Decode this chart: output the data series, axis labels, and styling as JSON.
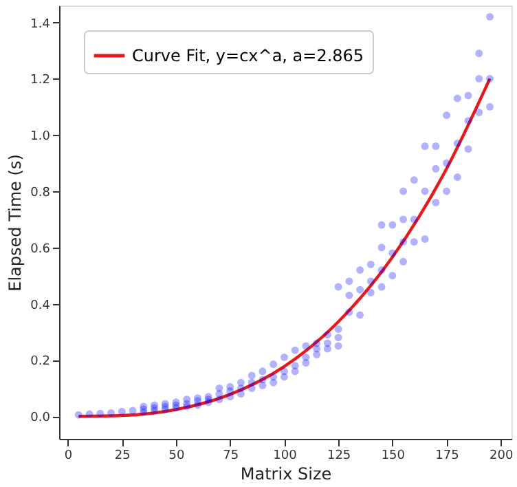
{
  "chart_data": {
    "type": "scatter",
    "xlabel": "Matrix Size",
    "ylabel": "Elapsed Time (s)",
    "xlim": [
      -4,
      205
    ],
    "ylim": [
      -0.08,
      1.46
    ],
    "xticks": [
      0,
      25,
      50,
      75,
      100,
      125,
      150,
      175,
      200
    ],
    "yticks": [
      {
        "value": 0,
        "label": "0.0"
      },
      {
        "value": 0.2,
        "label": "0.2"
      },
      {
        "value": 0.4,
        "label": "0.4"
      },
      {
        "value": 0.6,
        "label": "0.6"
      },
      {
        "value": 0.8,
        "label": "0.8"
      },
      {
        "value": 1.0,
        "label": "1.0"
      },
      {
        "value": 1.2,
        "label": "1.2"
      },
      {
        "value": 1.4,
        "label": "1.4"
      }
    ],
    "grid": false,
    "legend": "top left",
    "series": [
      {
        "marker": "circle",
        "color": "#0000ff",
        "x": [
          5,
          10,
          15,
          20,
          25,
          30,
          35,
          35,
          35,
          40,
          40,
          40,
          45,
          45,
          45,
          50,
          50,
          50,
          55,
          55,
          55,
          60,
          60,
          60,
          65,
          65,
          65,
          70,
          70,
          70,
          75,
          75,
          75,
          80,
          80,
          80,
          85,
          85,
          85,
          90,
          90,
          90,
          95,
          95,
          95,
          100,
          100,
          100,
          105,
          105,
          105,
          110,
          110,
          110,
          115,
          115,
          115,
          120,
          120,
          120,
          125,
          125,
          125,
          125,
          130,
          130,
          130,
          135,
          135,
          135,
          140,
          140,
          140,
          145,
          145,
          145,
          145,
          150,
          150,
          150,
          155,
          155,
          155,
          155,
          160,
          160,
          160,
          165,
          165,
          165,
          170,
          170,
          170,
          175,
          175,
          175,
          180,
          180,
          180,
          185,
          185,
          185,
          190,
          190,
          190,
          195,
          195,
          195
        ],
        "values": [
          0.005,
          0.008,
          0.01,
          0.012,
          0.017,
          0.02,
          0.015,
          0.025,
          0.035,
          0.02,
          0.03,
          0.04,
          0.025,
          0.035,
          0.045,
          0.03,
          0.04,
          0.05,
          0.035,
          0.045,
          0.06,
          0.04,
          0.055,
          0.065,
          0.05,
          0.06,
          0.07,
          0.06,
          0.08,
          0.1,
          0.07,
          0.09,
          0.105,
          0.08,
          0.1,
          0.12,
          0.1,
          0.12,
          0.145,
          0.11,
          0.13,
          0.16,
          0.12,
          0.14,
          0.185,
          0.14,
          0.16,
          0.21,
          0.16,
          0.18,
          0.235,
          0.19,
          0.21,
          0.25,
          0.22,
          0.24,
          0.26,
          0.24,
          0.26,
          0.29,
          0.25,
          0.28,
          0.31,
          0.46,
          0.37,
          0.43,
          0.48,
          0.36,
          0.45,
          0.52,
          0.44,
          0.48,
          0.54,
          0.46,
          0.52,
          0.6,
          0.68,
          0.5,
          0.58,
          0.68,
          0.55,
          0.62,
          0.7,
          0.8,
          0.62,
          0.7,
          0.84,
          0.63,
          0.8,
          0.96,
          0.76,
          0.88,
          0.96,
          0.8,
          0.9,
          1.07,
          0.85,
          0.97,
          1.13,
          0.95,
          1.05,
          1.14,
          1.08,
          1.2,
          1.29,
          1.1,
          1.2,
          1.42
        ]
      },
      {
        "type": "line",
        "name": "Curve Fit, y=cx^a, a=2.865",
        "color": "#e41a1c",
        "x": [
          5,
          25,
          50,
          75,
          100,
          125,
          150,
          175,
          195
        ],
        "values": [
          0,
          0.003,
          0.024,
          0.078,
          0.177,
          0.336,
          0.566,
          0.88,
          1.2
        ]
      }
    ]
  }
}
